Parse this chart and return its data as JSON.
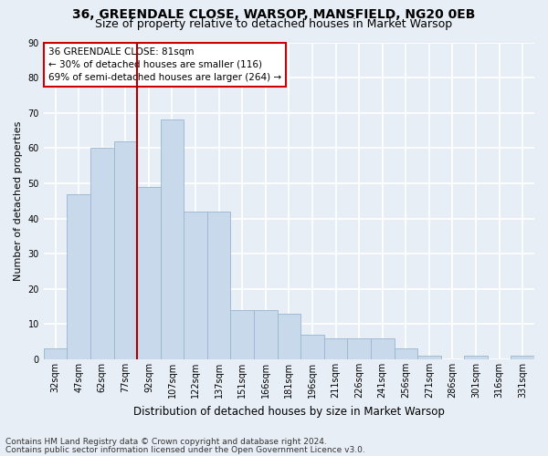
{
  "title_line1": "36, GREENDALE CLOSE, WARSOP, MANSFIELD, NG20 0EB",
  "title_line2": "Size of property relative to detached houses in Market Warsop",
  "xlabel": "Distribution of detached houses by size in Market Warsop",
  "ylabel": "Number of detached properties",
  "categories": [
    "32sqm",
    "47sqm",
    "62sqm",
    "77sqm",
    "92sqm",
    "107sqm",
    "122sqm",
    "137sqm",
    "151sqm",
    "166sqm",
    "181sqm",
    "196sqm",
    "211sqm",
    "226sqm",
    "241sqm",
    "256sqm",
    "271sqm",
    "286sqm",
    "301sqm",
    "316sqm",
    "331sqm"
  ],
  "values": [
    3,
    47,
    60,
    62,
    49,
    68,
    42,
    42,
    14,
    14,
    13,
    7,
    6,
    6,
    6,
    3,
    1,
    0,
    1,
    0,
    1
  ],
  "bar_color": "#c8d9ec",
  "bar_edgecolor": "#9ab5d0",
  "background_color": "#e8eef6",
  "grid_color": "#ffffff",
  "vline_color": "#aa0000",
  "vline_position": 3.5,
  "annotation_title": "36 GREENDALE CLOSE: 81sqm",
  "annotation_line1": "← 30% of detached houses are smaller (116)",
  "annotation_line2": "69% of semi-detached houses are larger (264) →",
  "annotation_box_facecolor": "#ffffff",
  "annotation_box_edgecolor": "#cc0000",
  "ylim": [
    0,
    90
  ],
  "yticks": [
    0,
    10,
    20,
    30,
    40,
    50,
    60,
    70,
    80,
    90
  ],
  "title_fontsize": 10,
  "subtitle_fontsize": 9,
  "tick_fontsize": 7,
  "ylabel_fontsize": 8,
  "xlabel_fontsize": 8.5,
  "annotation_fontsize": 7.5,
  "footer_fontsize": 6.5,
  "footer_line1": "Contains HM Land Registry data © Crown copyright and database right 2024.",
  "footer_line2": "Contains public sector information licensed under the Open Government Licence v3.0."
}
